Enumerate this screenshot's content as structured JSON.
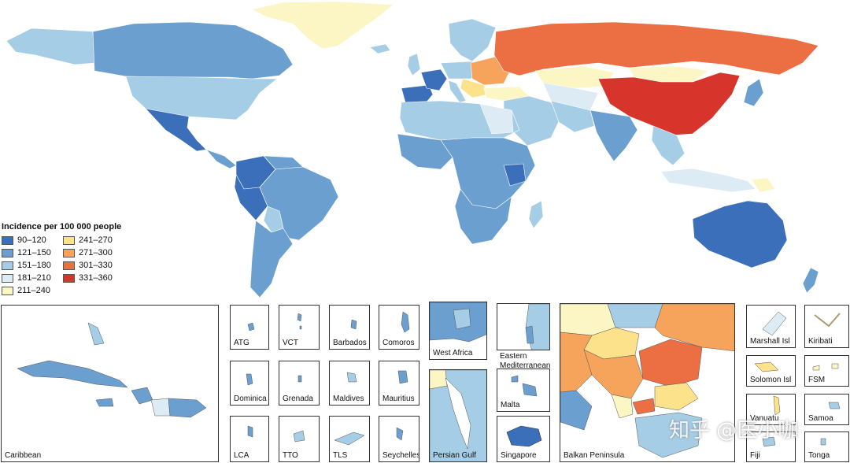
{
  "legend": {
    "title": "Incidence per 100 000 people",
    "items": [
      {
        "label": "90–120",
        "color": "#3b6fba"
      },
      {
        "label": "121–150",
        "color": "#6b9fcf"
      },
      {
        "label": "151–180",
        "color": "#a6cde6"
      },
      {
        "label": "181–210",
        "color": "#dcebf4"
      },
      {
        "label": "211–240",
        "color": "#fbf6c4"
      },
      {
        "label": "241–270",
        "color": "#fde28c"
      },
      {
        "label": "271–300",
        "color": "#f6a45c"
      },
      {
        "label": "301–330",
        "color": "#ec6e43"
      },
      {
        "label": "331–360",
        "color": "#d7352c"
      }
    ]
  },
  "insets": [
    {
      "name": "caribbean",
      "label": "Caribbean"
    },
    {
      "name": "atg",
      "label": "ATG"
    },
    {
      "name": "vct",
      "label": "VCT"
    },
    {
      "name": "barbados",
      "label": "Barbados"
    },
    {
      "name": "comoros",
      "label": "Comoros"
    },
    {
      "name": "dominica",
      "label": "Dominica"
    },
    {
      "name": "grenada",
      "label": "Grenada"
    },
    {
      "name": "maldives",
      "label": "Maldives"
    },
    {
      "name": "mauritius",
      "label": "Mauritius"
    },
    {
      "name": "lca",
      "label": "LCA"
    },
    {
      "name": "tto",
      "label": "TTO"
    },
    {
      "name": "tls",
      "label": "TLS"
    },
    {
      "name": "seychelles",
      "label": "Seychelles"
    },
    {
      "name": "west-africa",
      "label": "West Africa"
    },
    {
      "name": "eastern-mediterranean",
      "label": "Eastern\nMediterranean"
    },
    {
      "name": "persian-gulf",
      "label": "Persian Gulf"
    },
    {
      "name": "malta",
      "label": "Malta"
    },
    {
      "name": "singapore",
      "label": "Singapore"
    },
    {
      "name": "balkan-peninsula",
      "label": "Balkan Peninsula"
    },
    {
      "name": "marshall-isl",
      "label": "Marshall Isl"
    },
    {
      "name": "kiribati",
      "label": "Kiribati"
    },
    {
      "name": "solomon-isl",
      "label": "Solomon Isl"
    },
    {
      "name": "fsm",
      "label": "FSM"
    },
    {
      "name": "vanuatu",
      "label": "Vanuatu"
    },
    {
      "name": "samoa",
      "label": "Samoa"
    },
    {
      "name": "fiji",
      "label": "Fiji"
    },
    {
      "name": "tonga",
      "label": "Tonga"
    }
  ],
  "watermark": "知乎 @医小咖"
}
